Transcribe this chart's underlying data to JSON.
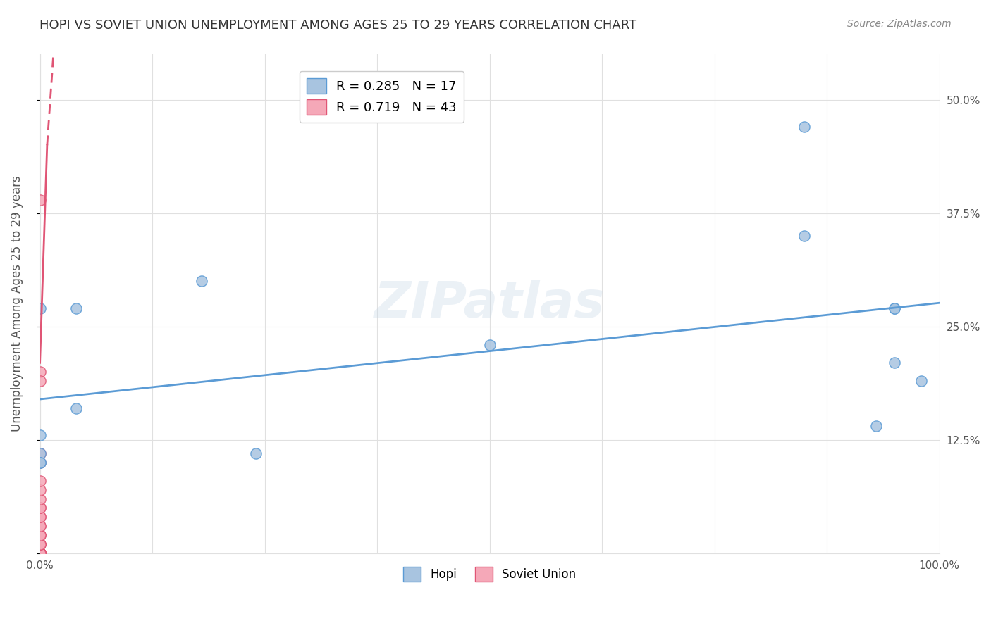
{
  "title": "HOPI VS SOVIET UNION UNEMPLOYMENT AMONG AGES 25 TO 29 YEARS CORRELATION CHART",
  "source": "Source: ZipAtlas.com",
  "ylabel": "Unemployment Among Ages 25 to 29 years",
  "xlim": [
    0,
    1.0
  ],
  "ylim": [
    0,
    0.55
  ],
  "xticks": [
    0,
    0.125,
    0.25,
    0.375,
    0.5,
    0.625,
    0.75,
    0.875,
    1.0
  ],
  "xticklabels": [
    "0.0%",
    "",
    "",
    "",
    "",
    "",
    "",
    "",
    "100.0%"
  ],
  "ytick_positions": [
    0,
    0.125,
    0.25,
    0.375,
    0.5
  ],
  "yticklabels_right": [
    "",
    "12.5%",
    "25.0%",
    "37.5%",
    "50.0%"
  ],
  "hopi_x": [
    0.0,
    0.0,
    0.0,
    0.0,
    0.0,
    0.04,
    0.04,
    0.18,
    0.24,
    0.5,
    0.85,
    0.85,
    0.93,
    0.95,
    0.95,
    0.95,
    0.98
  ],
  "hopi_y": [
    0.27,
    0.13,
    0.11,
    0.1,
    0.1,
    0.27,
    0.16,
    0.3,
    0.11,
    0.23,
    0.35,
    0.47,
    0.14,
    0.21,
    0.27,
    0.27,
    0.19
  ],
  "soviet_x": [
    0.0,
    0.0,
    0.0,
    0.0,
    0.0,
    0.0,
    0.0,
    0.0,
    0.0,
    0.0,
    0.0,
    0.0,
    0.0,
    0.0,
    0.0,
    0.0,
    0.0,
    0.0,
    0.0,
    0.0,
    0.0,
    0.0,
    0.0,
    0.0,
    0.0,
    0.0,
    0.0,
    0.0,
    0.0,
    0.0,
    0.0,
    0.0,
    0.0,
    0.0,
    0.0,
    0.0,
    0.0,
    0.0,
    0.0,
    0.0,
    0.0,
    0.0,
    0.0
  ],
  "soviet_y": [
    0.39,
    0.2,
    0.19,
    0.0,
    0.0,
    0.0,
    0.0,
    0.0,
    0.0,
    0.0,
    0.0,
    0.0,
    0.0,
    0.0,
    0.0,
    0.0,
    0.0,
    0.0,
    0.0,
    0.0,
    0.0,
    0.0,
    0.0,
    0.0,
    0.0,
    0.01,
    0.01,
    0.01,
    0.01,
    0.02,
    0.02,
    0.02,
    0.03,
    0.03,
    0.04,
    0.04,
    0.05,
    0.05,
    0.06,
    0.07,
    0.08,
    0.1,
    0.11
  ],
  "hopi_color": "#a8c4e0",
  "hopi_edge_color": "#5b9bd5",
  "soviet_color": "#f5a8b8",
  "soviet_edge_color": "#e05575",
  "hopi_line_color": "#5b9bd5",
  "soviet_line_color": "#e05575",
  "hopi_R": 0.285,
  "hopi_N": 17,
  "soviet_R": 0.719,
  "soviet_N": 43,
  "watermark": "ZIPatlas",
  "background_color": "#ffffff",
  "grid_color": "#e0e0e0"
}
